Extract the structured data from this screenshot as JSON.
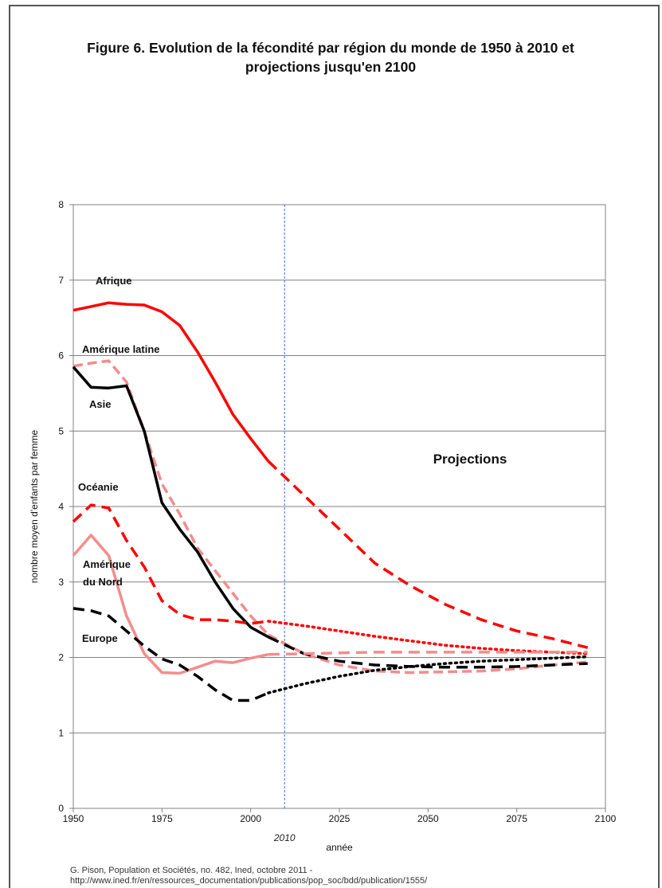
{
  "title": "Figure 6. Evolution de la fécondité par région du monde de 1950 à 2010 et projections jusqu'en 2100",
  "source": {
    "line1": "G. Pison, Population et Sociétés, no. 482, Ined, octobre 2011 -",
    "line2": "http://www.ined.fr/en/ressources_documentation/publications/pop_soc/bdd/publication/1555/"
  },
  "chart_data": {
    "type": "line",
    "title": "Figure 6. Evolution de la fécondité par région du monde de 1950 à 2010 et projections jusqu'en 2100",
    "xlabel": "année",
    "ylabel": "nombre moyen d'enfants par femme",
    "xlim": [
      1950,
      2100
    ],
    "ylim": [
      0,
      8
    ],
    "x_ticks": [
      "1950",
      "1975",
      "2000",
      "2025",
      "2050",
      "2075",
      "2100"
    ],
    "y_ticks": [
      "0",
      "1",
      "2",
      "3",
      "4",
      "5",
      "6",
      "7",
      "8"
    ],
    "grid": "horizontal",
    "divider_year": 2010,
    "divider_label": "2010",
    "projections_label": "Projections",
    "colors": {
      "red": "#ff0000",
      "black": "#000000",
      "pink": "#f38d8d",
      "divider": "#3b6fd1",
      "grid": "#808080"
    },
    "series": [
      {
        "name": "Afrique",
        "color": "#ff0000",
        "observed": [
          [
            1950,
            6.6
          ],
          [
            1955,
            6.65
          ],
          [
            1960,
            6.7
          ],
          [
            1965,
            6.68
          ],
          [
            1970,
            6.67
          ],
          [
            1975,
            6.58
          ],
          [
            1980,
            6.4
          ],
          [
            1985,
            6.05
          ],
          [
            1990,
            5.65
          ],
          [
            1995,
            5.22
          ],
          [
            2000,
            4.9
          ],
          [
            2005,
            4.6
          ]
        ],
        "projection": [
          [
            2005,
            4.6
          ],
          [
            2015,
            4.15
          ],
          [
            2025,
            3.7
          ],
          [
            2035,
            3.25
          ],
          [
            2045,
            2.95
          ],
          [
            2055,
            2.7
          ],
          [
            2065,
            2.5
          ],
          [
            2075,
            2.35
          ],
          [
            2085,
            2.25
          ],
          [
            2095,
            2.13
          ]
        ]
      },
      {
        "name": "Amérique latine",
        "color": "#f38d8d",
        "observed": [
          [
            1950,
            5.86
          ],
          [
            1955,
            5.9
          ],
          [
            1960,
            5.93
          ],
          [
            1965,
            5.65
          ],
          [
            1970,
            5.0
          ],
          [
            1975,
            4.3
          ],
          [
            1980,
            3.9
          ],
          [
            1985,
            3.45
          ],
          [
            1990,
            3.15
          ],
          [
            1995,
            2.85
          ],
          [
            2000,
            2.55
          ],
          [
            2005,
            2.3
          ]
        ],
        "projection": [
          [
            2005,
            2.3
          ],
          [
            2015,
            2.05
          ],
          [
            2025,
            1.9
          ],
          [
            2035,
            1.82
          ],
          [
            2045,
            1.8
          ],
          [
            2055,
            1.81
          ],
          [
            2065,
            1.82
          ],
          [
            2075,
            1.85
          ],
          [
            2085,
            1.9
          ],
          [
            2095,
            1.94
          ]
        ]
      },
      {
        "name": "Asie",
        "color": "#000000",
        "observed": [
          [
            1950,
            5.85
          ],
          [
            1955,
            5.58
          ],
          [
            1960,
            5.57
          ],
          [
            1965,
            5.6
          ],
          [
            1970,
            5.0
          ],
          [
            1975,
            4.05
          ],
          [
            1980,
            3.7
          ],
          [
            1985,
            3.4
          ],
          [
            1990,
            3.0
          ],
          [
            1995,
            2.65
          ],
          [
            2000,
            2.4
          ],
          [
            2005,
            2.27
          ]
        ],
        "projection": [
          [
            2005,
            2.27
          ],
          [
            2015,
            2.05
          ],
          [
            2025,
            1.95
          ],
          [
            2035,
            1.9
          ],
          [
            2045,
            1.88
          ],
          [
            2055,
            1.87
          ],
          [
            2065,
            1.87
          ],
          [
            2075,
            1.88
          ],
          [
            2085,
            1.9
          ],
          [
            2095,
            1.92
          ]
        ]
      },
      {
        "name": "Océanie",
        "color": "#ff0000",
        "observed": [
          [
            1950,
            3.8
          ],
          [
            1955,
            4.02
          ],
          [
            1960,
            3.98
          ],
          [
            1965,
            3.55
          ],
          [
            1970,
            3.2
          ],
          [
            1975,
            2.75
          ],
          [
            1980,
            2.57
          ],
          [
            1985,
            2.5
          ],
          [
            1990,
            2.5
          ],
          [
            1995,
            2.48
          ],
          [
            2000,
            2.45
          ],
          [
            2005,
            2.48
          ]
        ],
        "projection": [
          [
            2005,
            2.48
          ],
          [
            2015,
            2.42
          ],
          [
            2025,
            2.35
          ],
          [
            2035,
            2.28
          ],
          [
            2045,
            2.22
          ],
          [
            2055,
            2.16
          ],
          [
            2065,
            2.12
          ],
          [
            2075,
            2.09
          ],
          [
            2085,
            2.07
          ],
          [
            2095,
            2.05
          ]
        ]
      },
      {
        "name": "Amérique du Nord",
        "color": "#f38d8d",
        "observed": [
          [
            1950,
            3.35
          ],
          [
            1955,
            3.62
          ],
          [
            1960,
            3.35
          ],
          [
            1965,
            2.55
          ],
          [
            1970,
            2.05
          ],
          [
            1975,
            1.8
          ],
          [
            1980,
            1.79
          ],
          [
            1985,
            1.87
          ],
          [
            1990,
            1.95
          ],
          [
            1995,
            1.93
          ],
          [
            2000,
            1.99
          ],
          [
            2005,
            2.04
          ]
        ],
        "projection": [
          [
            2005,
            2.04
          ],
          [
            2015,
            2.05
          ],
          [
            2025,
            2.06
          ],
          [
            2035,
            2.07
          ],
          [
            2045,
            2.07
          ],
          [
            2055,
            2.07
          ],
          [
            2065,
            2.07
          ],
          [
            2075,
            2.07
          ],
          [
            2085,
            2.07
          ],
          [
            2095,
            2.07
          ]
        ]
      },
      {
        "name": "Europe",
        "color": "#000000",
        "observed": [
          [
            1950,
            2.65
          ],
          [
            1955,
            2.62
          ],
          [
            1960,
            2.55
          ],
          [
            1965,
            2.35
          ],
          [
            1970,
            2.15
          ],
          [
            1975,
            1.98
          ],
          [
            1980,
            1.9
          ],
          [
            1985,
            1.75
          ],
          [
            1990,
            1.57
          ],
          [
            1995,
            1.43
          ],
          [
            2000,
            1.43
          ],
          [
            2005,
            1.53
          ]
        ],
        "projection": [
          [
            2005,
            1.53
          ],
          [
            2015,
            1.65
          ],
          [
            2025,
            1.75
          ],
          [
            2035,
            1.83
          ],
          [
            2045,
            1.88
          ],
          [
            2055,
            1.92
          ],
          [
            2065,
            1.95
          ],
          [
            2075,
            1.97
          ],
          [
            2085,
            1.99
          ],
          [
            2095,
            2.01
          ]
        ]
      }
    ],
    "labels": [
      {
        "text": "Afrique"
      },
      {
        "text": "Amérique latine"
      },
      {
        "text": "Asie"
      },
      {
        "text": "Océanie"
      },
      {
        "text": "Amérique"
      },
      {
        "text": "du Nord"
      },
      {
        "text": "Europe"
      }
    ]
  }
}
